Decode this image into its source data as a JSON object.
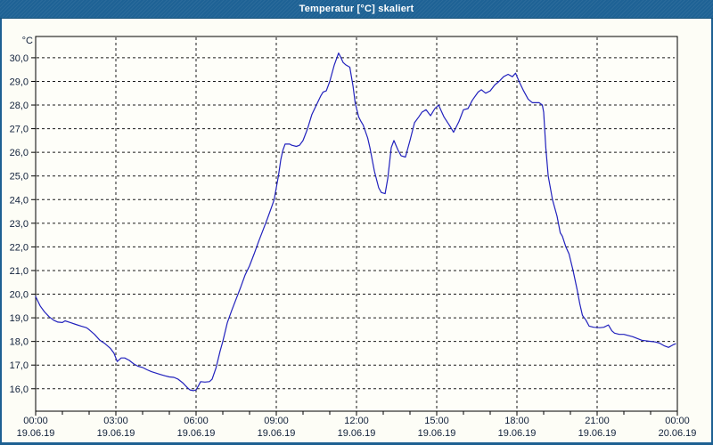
{
  "window": {
    "title": "Temperatur [°C] skaliert",
    "colors": {
      "titlebar": "#1E6295",
      "border": "#1D6092",
      "background": "#FDFDF6",
      "titlebar_text": "#FFFFFF"
    }
  },
  "chart_data": {
    "type": "line",
    "title": "Temperatur [°C] skaliert",
    "unit_label": "°C",
    "series_name": "Temperatur",
    "line_color": "#2121BD",
    "grid_color": "#1A1A1A",
    "axis_color": "#000000",
    "label_color": "#10203A",
    "grid_style": "dashed",
    "legend": "none",
    "x_axis": {
      "range_hours": [
        0,
        24
      ],
      "minor_tick_interval_hours": 1,
      "label_interval_hours": 3,
      "labels": [
        {
          "hour": 0,
          "time": "00:00",
          "date": "19.06.19"
        },
        {
          "hour": 3,
          "time": "03:00",
          "date": "19.06.19"
        },
        {
          "hour": 6,
          "time": "06:00",
          "date": "19.06.19"
        },
        {
          "hour": 9,
          "time": "09:00",
          "date": "19.06.19"
        },
        {
          "hour": 12,
          "time": "12:00",
          "date": "19.06.19"
        },
        {
          "hour": 15,
          "time": "15:00",
          "date": "19.06.19"
        },
        {
          "hour": 18,
          "time": "18:00",
          "date": "19.06.19"
        },
        {
          "hour": 21,
          "time": "21:00",
          "date": "19.06.19"
        },
        {
          "hour": 24,
          "time": "00:00",
          "date": "20.06.19"
        }
      ]
    },
    "y_axis": {
      "range": [
        15.05,
        30.9
      ],
      "ticks": [
        {
          "value": 30,
          "label": "30,0"
        },
        {
          "value": 29,
          "label": "29,0"
        },
        {
          "value": 28,
          "label": "28,0"
        },
        {
          "value": 27,
          "label": "27,0"
        },
        {
          "value": 26,
          "label": "26,0"
        },
        {
          "value": 25,
          "label": "25,0"
        },
        {
          "value": 24,
          "label": "24,0"
        },
        {
          "value": 23,
          "label": "23,0"
        },
        {
          "value": 22,
          "label": "22,0"
        },
        {
          "value": 21,
          "label": "21,0"
        },
        {
          "value": 20,
          "label": "20,0"
        },
        {
          "value": 19,
          "label": "19,0"
        },
        {
          "value": 18,
          "label": "18,0"
        },
        {
          "value": 17,
          "label": "17,0"
        },
        {
          "value": 16,
          "label": "16,0"
        }
      ]
    },
    "points": [
      [
        0.0,
        19.9
      ],
      [
        0.17,
        19.5
      ],
      [
        0.33,
        19.25
      ],
      [
        0.5,
        19.05
      ],
      [
        0.67,
        18.9
      ],
      [
        0.83,
        18.82
      ],
      [
        1.0,
        18.8
      ],
      [
        1.1,
        18.87
      ],
      [
        1.3,
        18.8
      ],
      [
        1.5,
        18.72
      ],
      [
        1.7,
        18.65
      ],
      [
        1.9,
        18.58
      ],
      [
        2.0,
        18.5
      ],
      [
        2.2,
        18.3
      ],
      [
        2.4,
        18.05
      ],
      [
        2.6,
        17.9
      ],
      [
        2.8,
        17.7
      ],
      [
        2.93,
        17.5
      ],
      [
        3.05,
        17.15
      ],
      [
        3.2,
        17.3
      ],
      [
        3.33,
        17.3
      ],
      [
        3.5,
        17.2
      ],
      [
        3.67,
        17.05
      ],
      [
        3.83,
        16.95
      ],
      [
        4.0,
        16.9
      ],
      [
        4.17,
        16.8
      ],
      [
        4.33,
        16.72
      ],
      [
        4.67,
        16.6
      ],
      [
        4.83,
        16.55
      ],
      [
        5.0,
        16.5
      ],
      [
        5.17,
        16.48
      ],
      [
        5.33,
        16.4
      ],
      [
        5.5,
        16.25
      ],
      [
        5.67,
        16.05
      ],
      [
        5.77,
        15.95
      ],
      [
        5.9,
        15.92
      ],
      [
        6.0,
        15.95
      ],
      [
        6.1,
        16.15
      ],
      [
        6.17,
        16.3
      ],
      [
        6.33,
        16.28
      ],
      [
        6.5,
        16.3
      ],
      [
        6.6,
        16.4
      ],
      [
        6.75,
        16.9
      ],
      [
        6.9,
        17.6
      ],
      [
        7.0,
        18.0
      ],
      [
        7.17,
        18.8
      ],
      [
        7.33,
        19.3
      ],
      [
        7.5,
        19.8
      ],
      [
        7.67,
        20.3
      ],
      [
        7.83,
        20.8
      ],
      [
        8.0,
        21.2
      ],
      [
        8.17,
        21.7
      ],
      [
        8.33,
        22.2
      ],
      [
        8.5,
        22.7
      ],
      [
        8.67,
        23.2
      ],
      [
        8.83,
        23.7
      ],
      [
        8.92,
        24.0
      ],
      [
        9.08,
        25.0
      ],
      [
        9.17,
        25.7
      ],
      [
        9.25,
        26.1
      ],
      [
        9.33,
        26.35
      ],
      [
        9.5,
        26.35
      ],
      [
        9.58,
        26.3
      ],
      [
        9.75,
        26.25
      ],
      [
        9.87,
        26.3
      ],
      [
        10.0,
        26.5
      ],
      [
        10.17,
        27.0
      ],
      [
        10.33,
        27.6
      ],
      [
        10.5,
        28.0
      ],
      [
        10.67,
        28.4
      ],
      [
        10.75,
        28.55
      ],
      [
        10.87,
        28.6
      ],
      [
        11.0,
        29.0
      ],
      [
        11.17,
        29.7
      ],
      [
        11.33,
        30.2
      ],
      [
        11.42,
        30.0
      ],
      [
        11.5,
        29.8
      ],
      [
        11.6,
        29.7
      ],
      [
        11.75,
        29.6
      ],
      [
        11.87,
        28.8
      ],
      [
        11.95,
        28.1
      ],
      [
        12.08,
        27.5
      ],
      [
        12.17,
        27.3
      ],
      [
        12.25,
        27.15
      ],
      [
        12.42,
        26.6
      ],
      [
        12.5,
        26.2
      ],
      [
        12.67,
        25.2
      ],
      [
        12.83,
        24.5
      ],
      [
        12.93,
        24.3
      ],
      [
        13.07,
        24.25
      ],
      [
        13.17,
        24.9
      ],
      [
        13.3,
        26.2
      ],
      [
        13.4,
        26.5
      ],
      [
        13.55,
        26.1
      ],
      [
        13.67,
        25.85
      ],
      [
        13.83,
        25.8
      ],
      [
        14.0,
        26.5
      ],
      [
        14.17,
        27.25
      ],
      [
        14.33,
        27.5
      ],
      [
        14.45,
        27.7
      ],
      [
        14.6,
        27.8
      ],
      [
        14.77,
        27.55
      ],
      [
        14.93,
        27.85
      ],
      [
        15.07,
        28.0
      ],
      [
        15.27,
        27.5
      ],
      [
        15.5,
        27.1
      ],
      [
        15.63,
        26.85
      ],
      [
        15.83,
        27.3
      ],
      [
        16.0,
        27.8
      ],
      [
        16.17,
        27.85
      ],
      [
        16.33,
        28.2
      ],
      [
        16.55,
        28.55
      ],
      [
        16.67,
        28.65
      ],
      [
        16.83,
        28.5
      ],
      [
        17.0,
        28.6
      ],
      [
        17.17,
        28.85
      ],
      [
        17.33,
        29.0
      ],
      [
        17.5,
        29.2
      ],
      [
        17.67,
        29.3
      ],
      [
        17.83,
        29.2
      ],
      [
        17.95,
        29.35
      ],
      [
        18.08,
        29.0
      ],
      [
        18.25,
        28.6
      ],
      [
        18.42,
        28.25
      ],
      [
        18.58,
        28.1
      ],
      [
        18.83,
        28.1
      ],
      [
        18.95,
        28.0
      ],
      [
        19.0,
        27.7
      ],
      [
        19.08,
        26.2
      ],
      [
        19.17,
        25.0
      ],
      [
        19.33,
        24.0
      ],
      [
        19.5,
        23.3
      ],
      [
        19.62,
        22.6
      ],
      [
        19.7,
        22.45
      ],
      [
        19.83,
        22.0
      ],
      [
        19.95,
        21.7
      ],
      [
        20.1,
        21.0
      ],
      [
        20.25,
        20.2
      ],
      [
        20.35,
        19.6
      ],
      [
        20.45,
        19.1
      ],
      [
        20.58,
        18.9
      ],
      [
        20.7,
        18.65
      ],
      [
        20.87,
        18.6
      ],
      [
        21.1,
        18.58
      ],
      [
        21.25,
        18.6
      ],
      [
        21.42,
        18.7
      ],
      [
        21.55,
        18.45
      ],
      [
        21.65,
        18.35
      ],
      [
        21.83,
        18.3
      ],
      [
        22.0,
        18.3
      ],
      [
        22.33,
        18.2
      ],
      [
        22.67,
        18.05
      ],
      [
        23.0,
        18.0
      ],
      [
        23.17,
        17.98
      ],
      [
        23.33,
        17.93
      ],
      [
        23.5,
        17.82
      ],
      [
        23.67,
        17.75
      ],
      [
        23.83,
        17.85
      ],
      [
        23.93,
        17.9
      ]
    ]
  }
}
